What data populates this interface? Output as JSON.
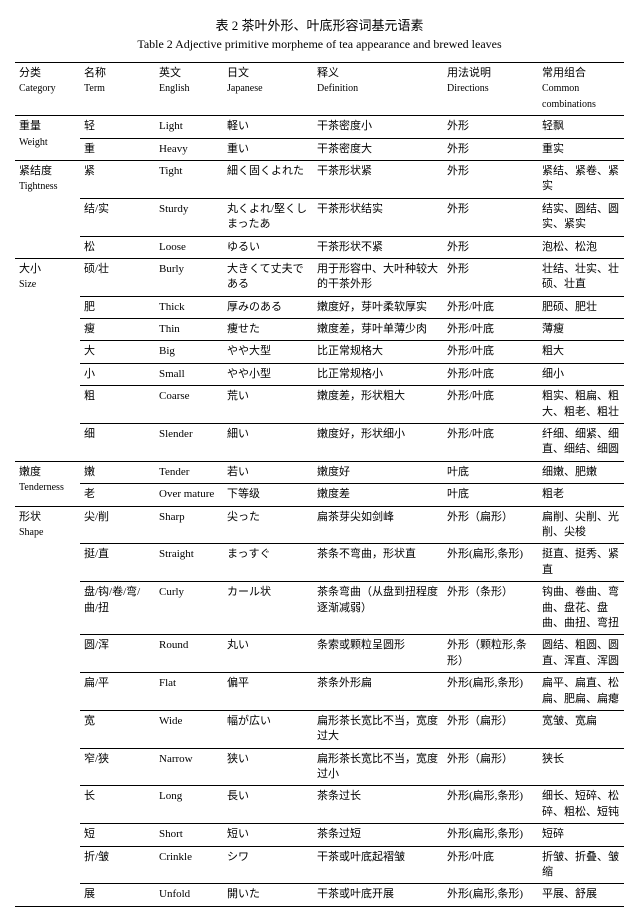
{
  "title_cn": "表 2 茶叶外形、叶底形容词基元语素",
  "title_en": "Table 2 Adjective primitive morpheme of tea appearance and brewed leaves",
  "headers": {
    "c1cn": "分类",
    "c1en": "Category",
    "c2cn": "名称",
    "c2en": "Term",
    "c3cn": "英文",
    "c3en": "English",
    "c4cn": "日文",
    "c4en": "Japanese",
    "c5cn": "释义",
    "c5en": "Definition",
    "c6cn": "用法说明",
    "c6en": "Directions",
    "c7cn": "常用组合",
    "c7en": "Common combinations"
  },
  "groups": [
    {
      "cat_cn": "重量",
      "cat_en": "Weight",
      "rows": [
        {
          "term": "轻",
          "en": "Light",
          "jp": "軽い",
          "def": "干茶密度小",
          "dir": "外形",
          "comb": "轻飘"
        },
        {
          "term": "重",
          "en": "Heavy",
          "jp": "重い",
          "def": "干茶密度大",
          "dir": "外形",
          "comb": "重实"
        }
      ]
    },
    {
      "cat_cn": "紧结度",
      "cat_en": "Tightness",
      "rows": [
        {
          "term": "紧",
          "en": "Tight",
          "jp": "細く固くよれた",
          "def": "干茶形状紧",
          "dir": "外形",
          "comb": "紧结、紧卷、紧实"
        },
        {
          "term": "结/实",
          "en": "Sturdy",
          "jp": "丸くよれ/堅くしまったあ",
          "def": "干茶形状结实",
          "dir": "外形",
          "comb": "结实、圆结、圆实、紧实"
        },
        {
          "term": "松",
          "en": "Loose",
          "jp": "ゆるい",
          "def": "干茶形状不紧",
          "dir": "外形",
          "comb": "泡松、松泡"
        }
      ]
    },
    {
      "cat_cn": "大小",
      "cat_en": "Size",
      "rows": [
        {
          "term": "硕/壮",
          "en": "Burly",
          "jp": "大きくて丈夫である",
          "def": "用于形容中、大叶种较大的干茶外形",
          "dir": "外形",
          "comb": "壮结、壮实、壮硕、壮直"
        },
        {
          "term": "肥",
          "en": "Thick",
          "jp": "厚みのある",
          "def": "嫩度好，芽叶柔软厚实",
          "dir": "外形/叶底",
          "comb": "肥硕、肥壮"
        },
        {
          "term": "瘦",
          "en": "Thin",
          "jp": "痩せた",
          "def": "嫩度差，芽叶单薄少肉",
          "dir": "外形/叶底",
          "comb": "薄瘦"
        },
        {
          "term": "大",
          "en": "Big",
          "jp": "やや大型",
          "def": "比正常规格大",
          "dir": "外形/叶底",
          "comb": "粗大"
        },
        {
          "term": "小",
          "en": "Small",
          "jp": "やや小型",
          "def": "比正常规格小",
          "dir": "外形/叶底",
          "comb": "细小"
        },
        {
          "term": "粗",
          "en": "Coarse",
          "jp": "荒い",
          "def": "嫩度差，形状粗大",
          "dir": "外形/叶底",
          "comb": "粗实、粗扁、粗大、粗老、粗壮"
        },
        {
          "term": "细",
          "en": "Slender",
          "jp": "細い",
          "def": "嫩度好，形状细小",
          "dir": "外形/叶底",
          "comb": "纤细、细紧、细直、细结、细圆"
        }
      ]
    },
    {
      "cat_cn": "嫩度",
      "cat_en": "Tenderness",
      "rows": [
        {
          "term": "嫩",
          "en": "Tender",
          "jp": "若い",
          "def": "嫩度好",
          "dir": "叶底",
          "comb": "细嫩、肥嫩"
        },
        {
          "term": "老",
          "en": "Over mature",
          "jp": "下等级",
          "def": "嫩度差",
          "dir": "叶底",
          "comb": "粗老"
        }
      ]
    },
    {
      "cat_cn": "形状",
      "cat_en": "Shape",
      "rows": [
        {
          "term": "尖/削",
          "en": "Sharp",
          "jp": "尖った",
          "def": "扁茶芽尖如剑峰",
          "dir": "外形（扁形）",
          "comb": "扁削、尖削、光削、尖梭"
        },
        {
          "term": "挺/直",
          "en": "Straight",
          "jp": "まっすぐ",
          "def": "茶条不弯曲，形状直",
          "dir": "外形(扁形,条形)",
          "comb": "挺直、挺秀、紧直"
        },
        {
          "term": "盘/钩/卷/弯/曲/扭",
          "en": "Curly",
          "jp": "カール状",
          "def": "茶条弯曲（从盘到扭程度逐渐减弱）",
          "dir": "外形（条形）",
          "comb": "钩曲、卷曲、弯曲、盘花、盘曲、曲扭、弯扭"
        },
        {
          "term": "圆/浑",
          "en": "Round",
          "jp": "丸い",
          "def": "条索或颗粒呈圆形",
          "dir": "外形（颗粒形,条形）",
          "comb": "圆结、粗圆、圆直、浑直、浑圆"
        },
        {
          "term": "扁/平",
          "en": "Flat",
          "jp": "偏平",
          "def": "茶条外形扁",
          "dir": "外形(扁形,条形)",
          "comb": "扁平、扁直、松扁、肥扁、扁瘪"
        },
        {
          "term": "宽",
          "en": "Wide",
          "jp": "幅が広い",
          "def": "扁形茶长宽比不当，宽度过大",
          "dir": "外形（扁形）",
          "comb": "宽皱、宽扁"
        },
        {
          "term": "窄/狭",
          "en": "Narrow",
          "jp": "狭い",
          "def": "扁形茶长宽比不当，宽度过小",
          "dir": "外形（扁形）",
          "comb": "狭长"
        },
        {
          "term": "长",
          "en": "Long",
          "jp": "長い",
          "def": "茶条过长",
          "dir": "外形(扁形,条形)",
          "comb": "细长、短碎、松碎、粗松、短钝"
        },
        {
          "term": "短",
          "en": "Short",
          "jp": "短い",
          "def": "茶条过短",
          "dir": "外形(扁形,条形)",
          "comb": "短碎"
        },
        {
          "term": "折/皱",
          "en": "Crinkle",
          "jp": "シワ",
          "def": "干茶或叶底起褶皱",
          "dir": "外形/叶底",
          "comb": "折皱、折叠、皱缩"
        },
        {
          "term": "展",
          "en": "Unfold",
          "jp": "開いた",
          "def": "干茶或叶底开展",
          "dir": "外形(扁形,条形)",
          "comb": "平展、舒展"
        }
      ]
    }
  ]
}
